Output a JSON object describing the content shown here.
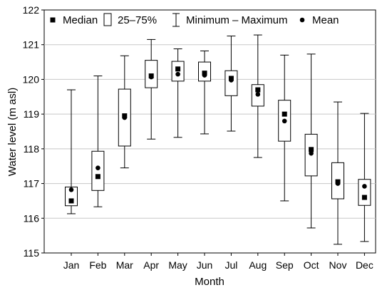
{
  "chart_data": {
    "type": "box",
    "xlabel": "Month",
    "ylabel": "Water level (m asl)",
    "ylim": [
      115,
      122
    ],
    "yticks": [
      115,
      116,
      117,
      118,
      119,
      120,
      121,
      122
    ],
    "categories": [
      "Jan",
      "Feb",
      "Mar",
      "Apr",
      "May",
      "Jun",
      "Jul",
      "Aug",
      "Sep",
      "Oct",
      "Nov",
      "Dec"
    ],
    "legend": {
      "position": "top",
      "items": [
        {
          "label": "Median",
          "symbol": "square"
        },
        {
          "label": "25–75%",
          "symbol": "box"
        },
        {
          "label": "Minimum – Maximum",
          "symbol": "whisker"
        },
        {
          "label": "Mean",
          "symbol": "circle"
        }
      ]
    },
    "boxes": [
      {
        "month": "Jan",
        "min": 116.13,
        "q1": 116.36,
        "median": 116.5,
        "q3": 116.9,
        "max": 119.7,
        "mean": 116.82
      },
      {
        "month": "Feb",
        "min": 116.33,
        "q1": 116.8,
        "median": 117.2,
        "q3": 117.93,
        "max": 120.1,
        "mean": 117.45
      },
      {
        "month": "Mar",
        "min": 117.45,
        "q1": 118.08,
        "median": 118.95,
        "q3": 119.72,
        "max": 120.68,
        "mean": 118.9
      },
      {
        "month": "Apr",
        "min": 118.28,
        "q1": 119.76,
        "median": 120.1,
        "q3": 120.55,
        "max": 121.15,
        "mean": 120.07
      },
      {
        "month": "May",
        "min": 118.33,
        "q1": 119.95,
        "median": 120.3,
        "q3": 120.52,
        "max": 120.88,
        "mean": 120.15
      },
      {
        "month": "Jun",
        "min": 118.43,
        "q1": 119.95,
        "median": 120.18,
        "q3": 120.5,
        "max": 120.82,
        "mean": 120.12
      },
      {
        "month": "Jul",
        "min": 118.51,
        "q1": 119.53,
        "median": 120.03,
        "q3": 120.25,
        "max": 121.25,
        "mean": 119.98
      },
      {
        "month": "Aug",
        "min": 117.75,
        "q1": 119.23,
        "median": 119.7,
        "q3": 119.85,
        "max": 121.28,
        "mean": 119.57
      },
      {
        "month": "Sep",
        "min": 116.5,
        "q1": 118.22,
        "median": 119.0,
        "q3": 119.4,
        "max": 120.7,
        "mean": 118.8
      },
      {
        "month": "Oct",
        "min": 115.72,
        "q1": 117.22,
        "median": 117.98,
        "q3": 118.42,
        "max": 120.73,
        "mean": 117.87
      },
      {
        "month": "Nov",
        "min": 115.25,
        "q1": 116.56,
        "median": 117.05,
        "q3": 117.6,
        "max": 119.35,
        "mean": 117.0
      },
      {
        "month": "Dec",
        "min": 115.33,
        "q1": 116.37,
        "median": 116.6,
        "q3": 117.12,
        "max": 119.02,
        "mean": 116.92
      }
    ]
  }
}
